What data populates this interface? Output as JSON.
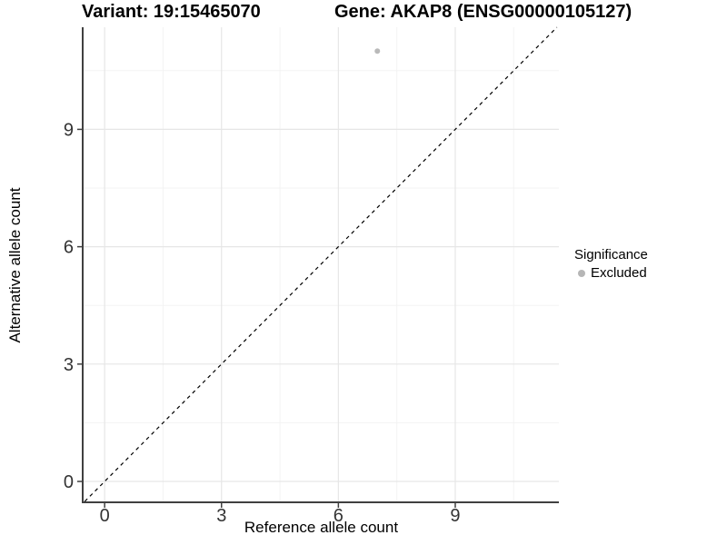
{
  "chart_data": {
    "type": "scatter",
    "title_left": "Variant: 19:15465070",
    "title_right": "Gene: AKAP8 (ENSG00000105127)",
    "xlabel": "Reference allele count",
    "ylabel": "Alternative allele count",
    "xlim": [
      -0.54,
      11.66
    ],
    "ylim": [
      -0.51,
      11.61
    ],
    "xticks": [
      0,
      3,
      6,
      9
    ],
    "yticks": [
      0,
      3,
      6,
      9
    ],
    "minor_xticks": [
      1.5,
      4.5,
      7.5,
      10.5
    ],
    "minor_yticks": [
      1.5,
      4.5,
      7.5,
      10.5
    ],
    "grid": true,
    "points": [
      {
        "x": 7,
        "y": 11,
        "series": "Excluded"
      }
    ],
    "reference_line": {
      "type": "identity",
      "style": "dashed",
      "color": "#000000"
    },
    "legend": {
      "title": "Significance",
      "position": "right",
      "entries": [
        {
          "label": "Excluded",
          "color": "#b6b6b6",
          "marker": "circle"
        }
      ]
    },
    "colors": {
      "point_excluded": "#b9b9b9",
      "grid_major": "#e6e6e6",
      "grid_minor": "#f3f3f3",
      "axis_line": "#404040",
      "tick_text": "#333333"
    }
  }
}
